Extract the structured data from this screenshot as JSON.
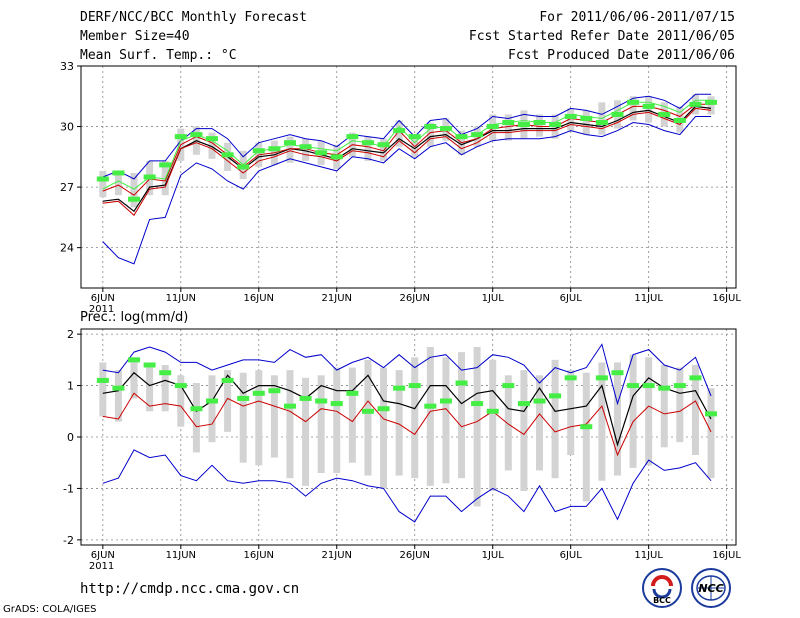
{
  "header": {
    "title": "DERF/NCC/BCC Monthly Forecast",
    "member_size": "Member Size=40",
    "variable": "Mean Surf. Temp.: °C",
    "period": "For 2011/06/06-2011/07/15",
    "refer_date": "Fcst Started Refer Date 2011/06/05",
    "produced_date": "Fcst Produced Date 2011/06/06"
  },
  "footer": {
    "url": "http://cmdp.ncc.cma.gov.cn",
    "grads": "GrADS: COLA/IGES",
    "logo_left_text": "BCC",
    "logo_right_text": "NCC"
  },
  "colors": {
    "envelope": "#0000cc",
    "mean": "#000000",
    "red": "#cc0000",
    "green": "#44ee44",
    "box": "#d3d3d3"
  },
  "chart_data": [
    {
      "type": "line",
      "panel": "temperature",
      "title": "Mean Surf. Temp.: °C",
      "x_start": 1,
      "x_end": 40,
      "x_ticks": [
        {
          "day": 1,
          "label": "6JUN"
        },
        {
          "day": 6,
          "label": "11JUN"
        },
        {
          "day": 11,
          "label": "16JUN"
        },
        {
          "day": 16,
          "label": "21JUN"
        },
        {
          "day": 21,
          "label": "26JUN"
        },
        {
          "day": 26,
          "label": "1JUL"
        },
        {
          "day": 31,
          "label": "6JUL"
        },
        {
          "day": 36,
          "label": "11JUL"
        },
        {
          "day": 41,
          "label": "16JUL"
        }
      ],
      "year_label": "2011",
      "ylim": [
        22,
        33
      ],
      "yticks": [
        24,
        27,
        30,
        33
      ],
      "series": [
        {
          "name": "max",
          "values": [
            27.5,
            27.8,
            27.4,
            28.3,
            28.3,
            29.3,
            29.9,
            29.9,
            29.4,
            28.5,
            29.2,
            29.4,
            29.6,
            29.4,
            29.3,
            29.0,
            29.6,
            29.5,
            29.4,
            30.3,
            29.5,
            30.3,
            30.4,
            29.6,
            29.9,
            30.5,
            30.4,
            30.6,
            30.5,
            30.5,
            30.9,
            30.8,
            30.6,
            31.0,
            31.4,
            31.5,
            31.3,
            30.9,
            31.6,
            31.6
          ]
        },
        {
          "name": "mean",
          "values": [
            26.3,
            26.4,
            25.8,
            27.0,
            27.1,
            28.9,
            29.3,
            29.0,
            28.5,
            27.9,
            28.5,
            28.6,
            28.9,
            28.8,
            28.6,
            28.4,
            28.9,
            28.8,
            28.7,
            29.4,
            28.9,
            29.5,
            29.6,
            29.1,
            29.4,
            29.8,
            29.8,
            29.9,
            29.9,
            29.9,
            30.2,
            30.1,
            30.0,
            30.3,
            30.7,
            30.8,
            30.5,
            30.2,
            31.0,
            30.9
          ]
        },
        {
          "name": "red",
          "values": [
            26.2,
            26.3,
            25.6,
            26.9,
            27.0,
            28.9,
            29.2,
            28.9,
            28.3,
            27.7,
            28.3,
            28.5,
            28.8,
            28.6,
            28.5,
            28.3,
            28.8,
            28.7,
            28.5,
            29.3,
            28.7,
            29.4,
            29.5,
            28.9,
            29.2,
            29.7,
            29.7,
            29.8,
            29.8,
            29.8,
            30.1,
            30.0,
            29.9,
            30.2,
            30.6,
            30.7,
            30.4,
            30.1,
            30.9,
            30.8
          ]
        },
        {
          "name": "red_upper",
          "values": [
            26.8,
            27.1,
            26.6,
            27.4,
            27.3,
            29.1,
            29.5,
            29.2,
            28.6,
            28.0,
            28.6,
            28.7,
            28.9,
            28.9,
            28.7,
            28.6,
            29.1,
            29.0,
            28.8,
            29.8,
            29.0,
            29.7,
            29.8,
            29.2,
            29.4,
            29.9,
            30.0,
            30.1,
            30.0,
            30.0,
            30.4,
            30.3,
            30.2,
            30.6,
            31.0,
            31.0,
            30.8,
            30.5,
            31.1,
            31.1
          ]
        },
        {
          "name": "green",
          "values": [
            26.9,
            27.3,
            26.9,
            27.5,
            27.4,
            29.3,
            29.6,
            29.3,
            28.8,
            28.1,
            28.8,
            28.9,
            29.1,
            29.0,
            28.9,
            28.8,
            29.3,
            29.2,
            29.0,
            30.0,
            29.2,
            29.9,
            30.0,
            29.4,
            29.6,
            30.1,
            30.2,
            30.3,
            30.2,
            30.2,
            30.6,
            30.5,
            30.4,
            30.8,
            31.2,
            31.2,
            31.0,
            30.7,
            31.3,
            31.3
          ]
        },
        {
          "name": "min",
          "values": [
            24.3,
            23.5,
            23.2,
            25.4,
            25.5,
            27.6,
            28.2,
            27.9,
            27.3,
            26.9,
            27.8,
            28.1,
            28.4,
            28.2,
            28.0,
            27.8,
            28.5,
            28.4,
            28.2,
            28.9,
            28.4,
            29.0,
            29.2,
            28.6,
            29.0,
            29.3,
            29.4,
            29.4,
            29.4,
            29.5,
            29.8,
            29.6,
            29.5,
            29.8,
            30.2,
            30.1,
            29.8,
            29.6,
            30.5,
            30.5
          ]
        }
      ],
      "markers": [
        27.4,
        27.7,
        26.4,
        27.5,
        28.1,
        29.5,
        29.6,
        29.4,
        28.6,
        28.0,
        28.8,
        28.9,
        29.2,
        29.0,
        28.7,
        28.5,
        29.5,
        29.2,
        29.1,
        29.8,
        29.5,
        30.0,
        29.9,
        29.5,
        29.6,
        30.0,
        30.2,
        30.1,
        30.2,
        30.1,
        30.5,
        30.4,
        30.2,
        30.6,
        31.2,
        31.0,
        30.6,
        30.3,
        31.1,
        31.2
      ],
      "boxes": [
        [
          26.5,
          27.8
        ],
        [
          26.6,
          27.8
        ],
        [
          26.0,
          27.7
        ],
        [
          26.6,
          28.3
        ],
        [
          26.6,
          28.3
        ],
        [
          28.3,
          29.9
        ],
        [
          28.6,
          30.0
        ],
        [
          28.4,
          29.7
        ],
        [
          27.8,
          29.2
        ],
        [
          27.4,
          28.8
        ],
        [
          28.0,
          29.2
        ],
        [
          28.1,
          29.3
        ],
        [
          28.2,
          29.5
        ],
        [
          28.3,
          29.4
        ],
        [
          28.1,
          29.3
        ],
        [
          27.9,
          29.1
        ],
        [
          28.5,
          29.7
        ],
        [
          28.3,
          29.5
        ],
        [
          28.3,
          29.4
        ],
        [
          29.0,
          30.3
        ],
        [
          28.5,
          29.6
        ],
        [
          29.0,
          30.2
        ],
        [
          29.3,
          30.4
        ],
        [
          28.6,
          29.8
        ],
        [
          29.0,
          30.0
        ],
        [
          29.3,
          30.6
        ],
        [
          29.3,
          30.6
        ],
        [
          29.4,
          30.8
        ],
        [
          29.5,
          30.6
        ],
        [
          29.4,
          30.6
        ],
        [
          29.8,
          30.9
        ],
        [
          29.6,
          30.8
        ],
        [
          29.6,
          31.2
        ],
        [
          29.9,
          31.3
        ],
        [
          30.3,
          31.5
        ],
        [
          30.2,
          31.5
        ],
        [
          30.0,
          31.2
        ],
        [
          29.7,
          31.0
        ],
        [
          30.6,
          31.6
        ],
        [
          30.6,
          31.5
        ]
      ]
    },
    {
      "type": "line",
      "panel": "precipitation",
      "title": "Prec.: log(mm/d)",
      "x_start": 1,
      "x_end": 40,
      "ylim": [
        -2.1,
        2.1
      ],
      "yticks": [
        -2,
        -1,
        0,
        1,
        2
      ],
      "series": [
        {
          "name": "max",
          "values": [
            1.3,
            1.25,
            1.65,
            1.75,
            1.65,
            1.45,
            1.45,
            1.3,
            1.4,
            1.5,
            1.5,
            1.45,
            1.7,
            1.55,
            1.6,
            1.3,
            1.45,
            1.55,
            1.35,
            1.6,
            1.35,
            1.55,
            1.6,
            1.3,
            1.35,
            1.6,
            1.55,
            1.4,
            1.05,
            1.35,
            1.25,
            1.35,
            1.8,
            0.65,
            1.6,
            1.7,
            1.4,
            1.3,
            1.55,
            0.8
          ]
        },
        {
          "name": "mean",
          "values": [
            0.85,
            0.9,
            1.25,
            1.0,
            1.1,
            1.0,
            0.5,
            0.7,
            1.2,
            0.85,
            1.0,
            1.0,
            0.9,
            0.75,
            1.0,
            0.9,
            0.9,
            1.2,
            0.7,
            0.65,
            0.55,
            1.0,
            1.0,
            0.65,
            0.85,
            0.9,
            0.55,
            0.5,
            0.95,
            0.5,
            0.55,
            0.6,
            1.0,
            -0.15,
            0.8,
            1.15,
            0.95,
            0.85,
            0.9,
            0.35
          ]
        },
        {
          "name": "red",
          "values": [
            0.4,
            0.35,
            0.85,
            0.6,
            0.65,
            0.6,
            0.2,
            0.25,
            0.75,
            0.6,
            0.7,
            0.6,
            0.5,
            0.3,
            0.55,
            0.5,
            0.3,
            0.7,
            0.35,
            0.25,
            0.05,
            0.5,
            0.55,
            0.2,
            0.3,
            0.5,
            0.25,
            0.05,
            0.45,
            0.1,
            0.2,
            0.25,
            0.6,
            -0.35,
            0.3,
            0.6,
            0.45,
            0.5,
            0.7,
            0.1
          ]
        },
        {
          "name": "min",
          "values": [
            -0.9,
            -0.8,
            -0.25,
            -0.4,
            -0.35,
            -0.75,
            -0.85,
            -0.55,
            -0.85,
            -0.9,
            -0.85,
            -0.85,
            -0.9,
            -1.15,
            -0.9,
            -0.8,
            -0.85,
            -0.95,
            -1.0,
            -1.45,
            -1.65,
            -1.15,
            -1.15,
            -1.45,
            -1.2,
            -1.0,
            -1.15,
            -1.45,
            -0.95,
            -1.45,
            -1.35,
            -1.35,
            -1.0,
            -1.6,
            -0.9,
            -0.45,
            -0.65,
            -0.6,
            -0.5,
            -0.85
          ]
        }
      ],
      "markers": [
        1.1,
        0.95,
        1.5,
        1.4,
        1.25,
        1.0,
        0.55,
        0.7,
        1.1,
        0.75,
        0.85,
        0.9,
        0.6,
        0.75,
        0.7,
        0.65,
        0.85,
        0.5,
        0.55,
        0.95,
        1.0,
        0.6,
        0.7,
        1.05,
        0.65,
        0.5,
        1.0,
        0.65,
        0.7,
        0.8,
        1.15,
        0.2,
        1.15,
        1.25,
        1.0,
        1.0,
        0.95,
        1.0,
        1.15,
        0.45
      ],
      "boxes": [
        [
          0.4,
          1.45
        ],
        [
          0.3,
          1.3
        ],
        [
          0.75,
          1.55
        ],
        [
          0.5,
          1.35
        ],
        [
          0.5,
          1.4
        ],
        [
          0.2,
          1.2
        ],
        [
          -0.3,
          1.05
        ],
        [
          -0.1,
          1.2
        ],
        [
          0.1,
          1.3
        ],
        [
          -0.5,
          1.25
        ],
        [
          -0.55,
          1.3
        ],
        [
          -0.4,
          1.2
        ],
        [
          -0.8,
          1.3
        ],
        [
          -0.95,
          1.15
        ],
        [
          -0.7,
          1.2
        ],
        [
          -0.7,
          1.35
        ],
        [
          -0.5,
          1.35
        ],
        [
          -0.75,
          1.5
        ],
        [
          -1.0,
          1.35
        ],
        [
          -0.75,
          1.3
        ],
        [
          -0.8,
          1.55
        ],
        [
          -0.95,
          1.75
        ],
        [
          -0.9,
          1.55
        ],
        [
          -0.8,
          1.65
        ],
        [
          -1.35,
          1.75
        ],
        [
          -1.05,
          1.5
        ],
        [
          -0.65,
          1.2
        ],
        [
          -1.05,
          1.3
        ],
        [
          -0.65,
          1.2
        ],
        [
          -0.8,
          1.5
        ],
        [
          -0.35,
          1.3
        ],
        [
          -1.25,
          1.25
        ],
        [
          -0.85,
          1.45
        ],
        [
          -0.75,
          1.45
        ],
        [
          -0.6,
          1.6
        ],
        [
          -0.55,
          1.55
        ],
        [
          -0.2,
          1.4
        ],
        [
          -0.1,
          1.35
        ],
        [
          -0.35,
          1.4
        ],
        [
          -0.8,
          0.95
        ]
      ]
    }
  ]
}
